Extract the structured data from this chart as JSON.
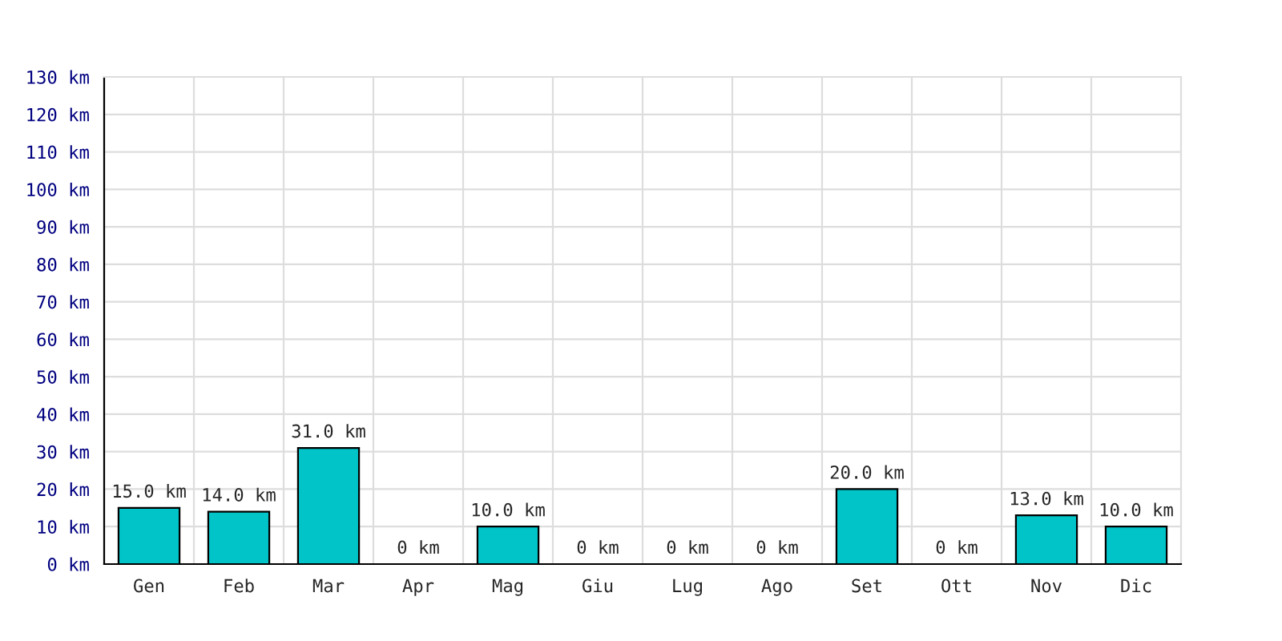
{
  "chart_data": {
    "type": "bar",
    "categories": [
      "Gen",
      "Feb",
      "Mar",
      "Apr",
      "Mag",
      "Giu",
      "Lug",
      "Ago",
      "Set",
      "Ott",
      "Nov",
      "Dic"
    ],
    "values": [
      15.0,
      14.0,
      31.0,
      0,
      10.0,
      0,
      0,
      0,
      20.0,
      0,
      13.0,
      10.0
    ],
    "value_labels": [
      "15.0 km",
      "14.0 km",
      "31.0 km",
      "0 km",
      "10.0 km",
      "0 km",
      "0 km",
      "0 km",
      "20.0 km",
      "0 km",
      "13.0 km",
      "10.0 km"
    ],
    "color": "#00c4c8",
    "ylim": [
      0,
      130
    ],
    "yticks": [
      {
        "value": 0,
        "label": "0 km"
      },
      {
        "value": 10,
        "label": "10 km"
      },
      {
        "value": 20,
        "label": "20 km"
      },
      {
        "value": 30,
        "label": "30 km"
      },
      {
        "value": 40,
        "label": "40 km"
      },
      {
        "value": 50,
        "label": "50 km"
      },
      {
        "value": 60,
        "label": "60 km"
      },
      {
        "value": 70,
        "label": "70 km"
      },
      {
        "value": 80,
        "label": "80 km"
      },
      {
        "value": 90,
        "label": "90 km"
      },
      {
        "value": 100,
        "label": "100 km"
      },
      {
        "value": 110,
        "label": "110 km"
      },
      {
        "value": 120,
        "label": "120 km"
      },
      {
        "value": 130,
        "label": "130 km"
      }
    ],
    "grid": true
  }
}
